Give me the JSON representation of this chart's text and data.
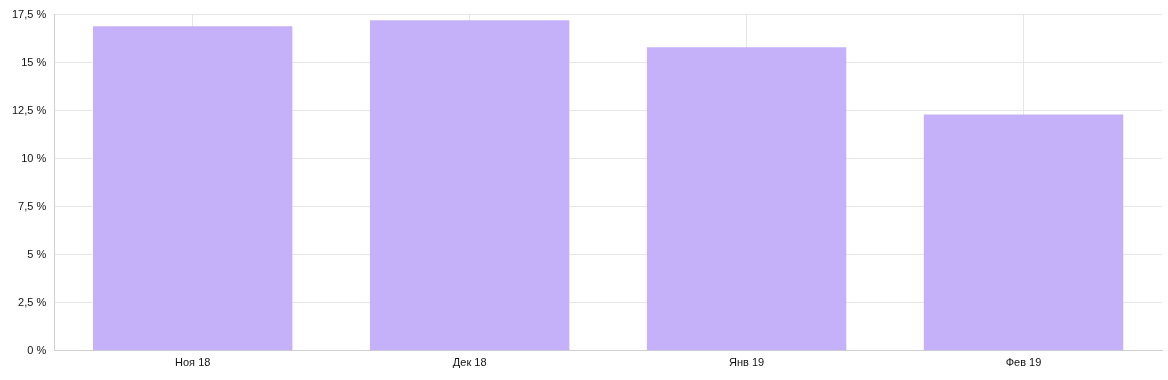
{
  "chart_data": {
    "type": "bar",
    "categories": [
      "Ноя 18",
      "Дек 18",
      "Янв 19",
      "Фев 19"
    ],
    "values": [
      16.9,
      17.2,
      15.8,
      12.3
    ],
    "color": "#c4b1f9",
    "ylim": [
      0,
      17.5
    ],
    "yticks": [
      {
        "value": 0,
        "label": "0 %"
      },
      {
        "value": 2.5,
        "label": "2,5 %"
      },
      {
        "value": 5,
        "label": "5 %"
      },
      {
        "value": 7.5,
        "label": "7,5 %"
      },
      {
        "value": 10,
        "label": "10 %"
      },
      {
        "value": 12.5,
        "label": "12,5 %"
      },
      {
        "value": 15,
        "label": "15 %"
      },
      {
        "value": 17.5,
        "label": "17,5 %"
      }
    ],
    "grid": true,
    "legend": false
  }
}
